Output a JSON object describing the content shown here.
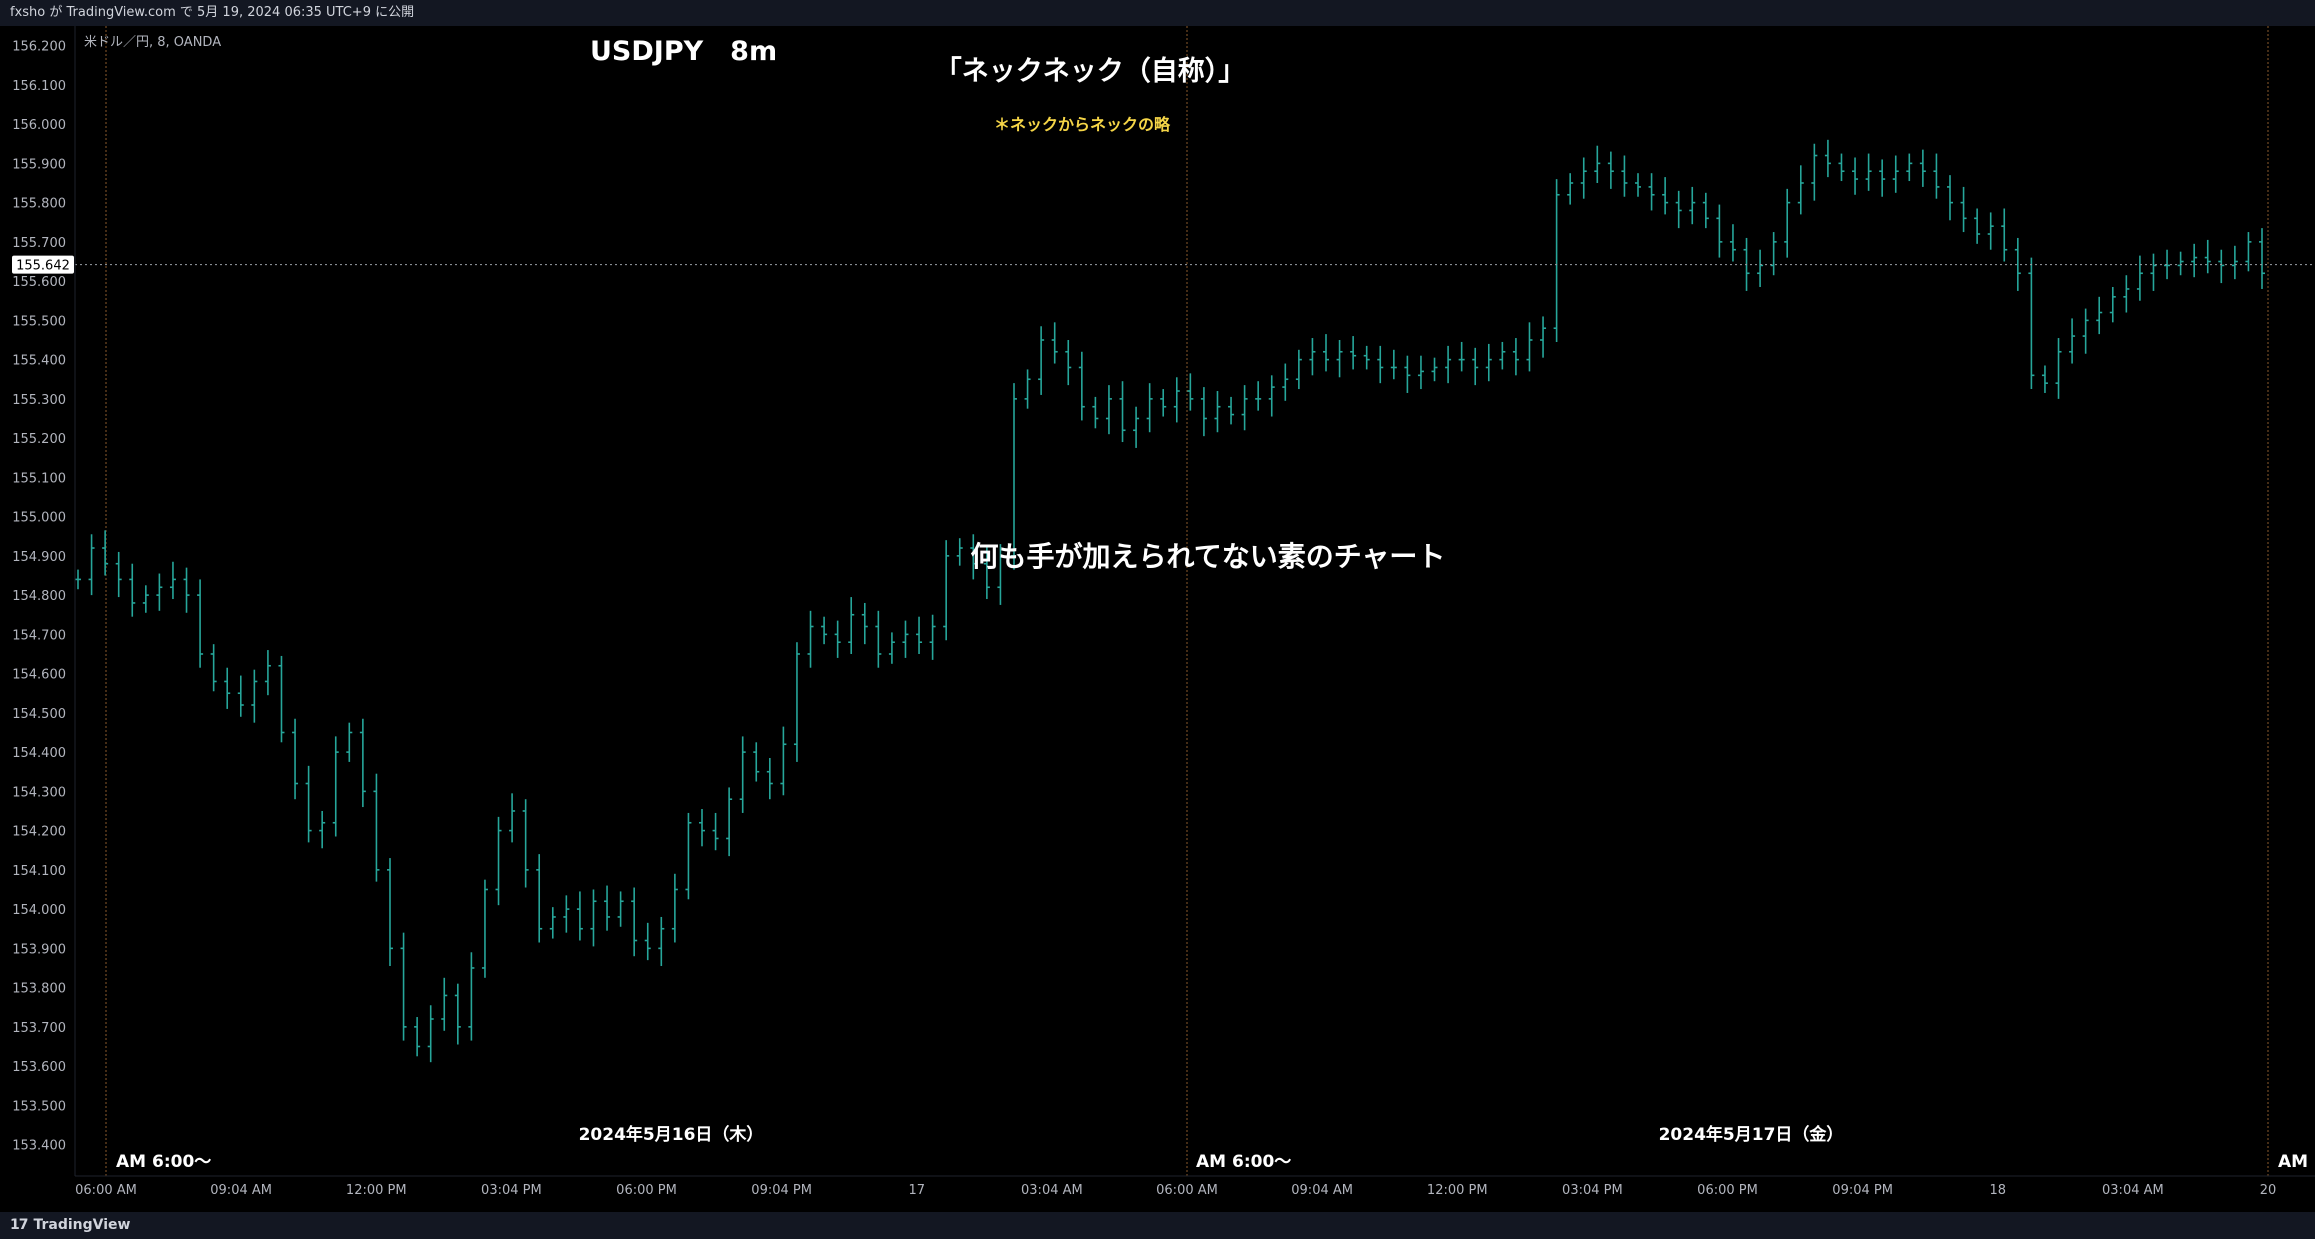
{
  "header": {
    "publish_text": "fxsho が TradingView.com で 5月 19, 2024 06:35 UTC+9 に公開"
  },
  "footer": {
    "logo_mark": "17",
    "brand": "TradingView"
  },
  "chart": {
    "symbol_info": "米ドル／円, 8, OANDA",
    "current_price": "155.642",
    "annotations": {
      "title": "USDJPY　8m",
      "subtitle": "「ネックネック（自称）」",
      "note": "＊ネックからネックの略",
      "center_text": "何も手が加えられてない素のチャート",
      "date_label_1": "2024年5月16日（木）",
      "date_label_2": "2024年5月17日（金）",
      "session_label_1": "AM 6:00〜",
      "session_label_2": "AM 6:00〜",
      "session_label_3": "AM"
    },
    "colors": {
      "background": "#000000",
      "candles": "#26a69a",
      "session_line": "#8a5a2b",
      "price_line": "#9aa0a6",
      "note": "#f5d547"
    }
  },
  "chart_data": {
    "type": "line",
    "symbol": "USDJPY",
    "interval": "8m",
    "y_axis": {
      "ticks": [
        "156.200",
        "156.100",
        "156.000",
        "155.900",
        "155.800",
        "155.700",
        "155.600",
        "155.500",
        "155.400",
        "155.300",
        "155.200",
        "155.100",
        "155.000",
        "154.900",
        "154.800",
        "154.700",
        "154.600",
        "154.500",
        "154.400",
        "154.300",
        "154.200",
        "154.100",
        "154.000",
        "153.900",
        "153.800",
        "153.700",
        "153.600",
        "153.500",
        "153.400"
      ],
      "ylim": [
        153.32,
        156.25
      ]
    },
    "x_axis": {
      "ticks": [
        "06:00 AM",
        "09:04 AM",
        "12:00 PM",
        "03:04 PM",
        "06:00 PM",
        "09:04 PM",
        "17",
        "03:04 AM",
        "06:00 AM",
        "09:04 AM",
        "12:00 PM",
        "03:04 PM",
        "06:00 PM",
        "09:04 PM",
        "18",
        "03:04 AM",
        "20"
      ]
    },
    "series": [
      {
        "values": [
          154.84,
          154.92,
          154.88,
          154.84,
          154.78,
          154.8,
          154.82,
          154.84,
          154.8,
          154.65,
          154.58,
          154.55,
          154.52,
          154.58,
          154.62,
          154.45,
          154.32,
          154.2,
          154.22,
          154.4,
          154.45,
          154.3,
          154.1,
          153.9,
          153.7,
          153.65,
          153.72,
          153.78,
          153.7,
          153.85,
          154.05,
          154.2,
          154.25,
          154.1,
          153.95,
          153.98,
          154.0,
          153.95,
          154.02,
          153.98,
          154.02,
          153.92,
          153.9,
          153.95,
          154.05,
          154.22,
          154.2,
          154.18,
          154.28,
          154.4,
          154.35,
          154.32,
          154.42,
          154.65,
          154.72,
          154.7,
          154.68,
          154.75,
          154.72,
          154.65,
          154.68,
          154.7,
          154.68,
          154.72,
          154.9,
          154.92,
          154.88,
          154.82,
          154.9,
          155.3,
          155.35,
          155.45,
          155.42,
          155.38,
          155.28,
          155.25,
          155.3,
          155.22,
          155.25,
          155.3,
          155.28,
          155.32,
          155.3,
          155.25,
          155.28,
          155.26,
          155.3,
          155.3,
          155.33,
          155.35,
          155.4,
          155.42,
          155.4,
          155.42,
          155.41,
          155.4,
          155.38,
          155.38,
          155.36,
          155.37,
          155.38,
          155.4,
          155.4,
          155.38,
          155.4,
          155.42,
          155.4,
          155.45,
          155.48,
          155.82,
          155.85,
          155.88,
          155.9,
          155.88,
          155.85,
          155.84,
          155.82,
          155.8,
          155.78,
          155.8,
          155.76,
          155.7,
          155.68,
          155.62,
          155.64,
          155.7,
          155.8,
          155.85,
          155.92,
          155.9,
          155.88,
          155.86,
          155.88,
          155.86,
          155.88,
          155.9,
          155.88,
          155.84,
          155.8,
          155.76,
          155.72,
          155.74,
          155.68,
          155.62,
          155.36,
          155.34,
          155.42,
          155.46,
          155.5,
          155.52,
          155.56,
          155.58,
          155.62,
          155.64,
          155.64,
          155.65,
          155.66,
          155.65,
          155.64,
          155.65,
          155.7,
          155.62
        ]
      }
    ]
  }
}
